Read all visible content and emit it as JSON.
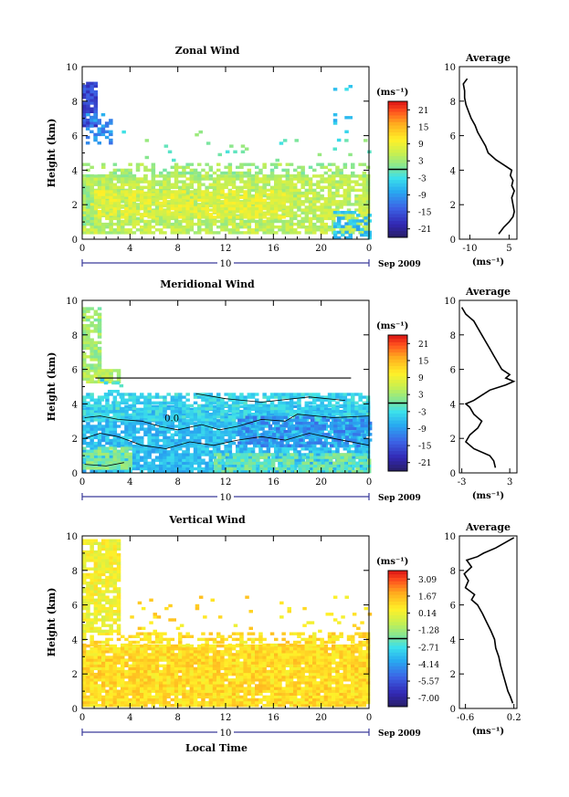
{
  "x_axis": {
    "ticks": [
      "0",
      "4",
      "8",
      "12",
      "16",
      "20",
      "0"
    ],
    "date_day": "10",
    "date_label": "Sep 2009",
    "xlabel": "Local Time"
  },
  "panels": [
    {
      "id": "zonal",
      "title": "Zonal Wind",
      "ylabel": "Height (km)",
      "yticks": [
        "0",
        "2",
        "4",
        "6",
        "8",
        "10"
      ],
      "colorbar": {
        "unit": "(ms⁻¹)",
        "labels": [
          "21",
          "15",
          "9",
          "3",
          "-3",
          "-9",
          "-15",
          "-21"
        ],
        "min": -24,
        "max": 24
      },
      "average": {
        "title": "Average",
        "xticks": [
          "-10",
          "5"
        ],
        "xunit": "(ms⁻¹)",
        "xlim": [
          -14,
          8
        ]
      }
    },
    {
      "id": "meridional",
      "title": "Meridional Wind",
      "ylabel": "Height (km)",
      "yticks": [
        "0",
        "2",
        "4",
        "6",
        "8",
        "10"
      ],
      "contour_label": "0.0",
      "colorbar": {
        "unit": "(ms⁻¹)",
        "labels": [
          "21",
          "15",
          "9",
          "3",
          "-3",
          "-9",
          "-15",
          "-21"
        ],
        "min": -24,
        "max": 24
      },
      "average": {
        "title": "Average",
        "xticks": [
          "-3",
          "3"
        ],
        "xunit": "(ms⁻¹)",
        "xlim": [
          -3.3,
          3.9
        ]
      }
    },
    {
      "id": "vertical",
      "title": "Vertical Wind",
      "ylabel": "Height (km)",
      "yticks": [
        "0",
        "2",
        "4",
        "6",
        "8",
        "10"
      ],
      "colorbar": {
        "unit": "(ms⁻¹)",
        "labels": [
          "3.09",
          "1.67",
          "0.14",
          "-1.28",
          "-2.71",
          "-4.14",
          "-5.57",
          "-7.00"
        ],
        "min": -8,
        "max": 3.8
      },
      "average": {
        "title": "Average",
        "xticks": [
          "-0.6",
          "0.2"
        ],
        "xunit": "(ms⁻¹)",
        "xlim": [
          -0.7,
          0.25
        ]
      }
    }
  ],
  "chart_data": [
    {
      "type": "heatmap",
      "title": "Zonal Wind",
      "ylabel": "Height (km)",
      "xlabel": "",
      "xlim": [
        0,
        24
      ],
      "ylim": [
        0,
        10
      ],
      "colorbar_range": [
        -24,
        24
      ],
      "blobs": [
        {
          "x0": 0,
          "x1": 24,
          "y0": 0.3,
          "y1": 3.6,
          "value": 5,
          "density": 0.82
        },
        {
          "x0": 0,
          "x1": 24,
          "y0": 3.6,
          "y1": 4.4,
          "value": 3,
          "density": 0.45
        },
        {
          "x0": 0,
          "x1": 17,
          "y0": 1.2,
          "y1": 2.8,
          "value": 8,
          "density": 0.75
        },
        {
          "x0": 0,
          "x1": 0.8,
          "y0": 0.8,
          "y1": 3.0,
          "value": 3,
          "density": 0.9
        },
        {
          "x0": 21,
          "x1": 24,
          "y0": 0,
          "y1": 1.5,
          "value": -6,
          "density": 0.5
        },
        {
          "x0": 0,
          "x1": 1.1,
          "y0": 6.5,
          "y1": 9.1,
          "value": -16,
          "density": 0.9
        },
        {
          "x0": 0.3,
          "x1": 2.5,
          "y0": 5.5,
          "y1": 7.3,
          "value": -10,
          "density": 0.5
        },
        {
          "x0": 3,
          "x1": 24,
          "y0": 4.5,
          "y1": 6.2,
          "value": 0,
          "density": 0.03
        },
        {
          "x0": 21,
          "x1": 22.5,
          "y0": 5.5,
          "y1": 9.0,
          "value": -5,
          "density": 0.07
        }
      ],
      "series": [
        {
          "name": "Average",
          "height_km": [
            0.3,
            0.7,
            1.0,
            1.3,
            1.6,
            2.0,
            2.4,
            2.8,
            3.1,
            3.4,
            3.7,
            4.0,
            4.3,
            4.6,
            5.0,
            5.4,
            5.8,
            6.2,
            6.6,
            7.0,
            7.4,
            7.8,
            8.2,
            8.6,
            9.0,
            9.3
          ],
          "value_ms": [
            1,
            3,
            5,
            6.5,
            7,
            6.5,
            6,
            7,
            6,
            6.5,
            5.5,
            6,
            3,
            0,
            -3,
            -4,
            -5.5,
            -7,
            -8,
            -9.5,
            -10.5,
            -11.5,
            -12,
            -12,
            -12.5,
            -11
          ]
        }
      ]
    },
    {
      "type": "heatmap",
      "title": "Meridional Wind",
      "ylabel": "Height (km)",
      "xlabel": "",
      "xlim": [
        0,
        24
      ],
      "ylim": [
        0,
        10
      ],
      "colorbar_range": [
        -24,
        24
      ],
      "blobs": [
        {
          "x0": 0,
          "x1": 24,
          "y0": 0,
          "y1": 3.8,
          "value": -6,
          "density": 0.85
        },
        {
          "x0": 0,
          "x1": 24,
          "y0": 3.0,
          "y1": 4.6,
          "value": -4,
          "density": 0.7
        },
        {
          "x0": 0,
          "x1": 4,
          "y0": 0.2,
          "y1": 1.5,
          "value": 1,
          "density": 0.9
        },
        {
          "x0": 11,
          "x1": 24,
          "y0": 0,
          "y1": 1.0,
          "value": 0,
          "density": 0.75
        },
        {
          "x0": 13,
          "x1": 24,
          "y0": 1.5,
          "y1": 3.2,
          "value": -10,
          "density": 0.6
        },
        {
          "x0": 0,
          "x1": 3,
          "y0": 5.2,
          "y1": 6.0,
          "value": 5,
          "density": 0.9
        },
        {
          "x0": 0,
          "x1": 1.5,
          "y0": 6.0,
          "y1": 9.5,
          "value": 3,
          "density": 0.75
        },
        {
          "x0": 1.5,
          "x1": 3.5,
          "y0": 3.5,
          "y1": 5.5,
          "value": -3,
          "density": 0.2
        }
      ],
      "series": [
        {
          "name": "Average",
          "height_km": [
            0.3,
            0.7,
            1.0,
            1.4,
            1.8,
            2.2,
            2.6,
            3.0,
            3.4,
            3.8,
            4.0,
            4.2,
            4.5,
            4.8,
            5.1,
            5.3,
            5.5,
            5.7,
            6.0,
            6.4,
            6.8,
            7.2,
            7.6,
            8.0,
            8.4,
            8.8,
            9.2,
            9.6
          ],
          "value_ms": [
            1.2,
            1.0,
            0.5,
            -1.5,
            -2.5,
            -2.0,
            -1.0,
            -0.5,
            -1.5,
            -2.0,
            -2.5,
            -1.5,
            -0.5,
            0.5,
            2.5,
            3.5,
            2.5,
            3.0,
            2.0,
            1.5,
            1.0,
            0.5,
            0.0,
            -0.5,
            -1.0,
            -1.5,
            -2.5,
            -3.0
          ]
        }
      ]
    },
    {
      "type": "heatmap",
      "title": "Vertical Wind",
      "ylabel": "Height (km)",
      "xlabel": "Local Time",
      "xlim": [
        0,
        24
      ],
      "ylim": [
        0,
        10
      ],
      "colorbar_range": [
        -8,
        3.8
      ],
      "blobs": [
        {
          "x0": 0,
          "x1": 24,
          "y0": 0.1,
          "y1": 3.6,
          "value": 0.9,
          "density": 0.95
        },
        {
          "x0": 0,
          "x1": 24,
          "y0": 3.6,
          "y1": 4.4,
          "value": 0.8,
          "density": 0.45
        },
        {
          "x0": 0,
          "x1": 3.2,
          "y0": 4.4,
          "y1": 9.8,
          "value": 0.2,
          "density": 0.8
        },
        {
          "x0": 4,
          "x1": 24,
          "y0": 4.4,
          "y1": 6.5,
          "value": 0.8,
          "density": 0.05
        }
      ],
      "series": [
        {
          "name": "Average",
          "height_km": [
            0.3,
            0.7,
            1.0,
            1.5,
            2.0,
            2.5,
            3.0,
            3.5,
            4.0,
            4.5,
            5.0,
            5.5,
            6.0,
            6.3,
            6.6,
            7.0,
            7.4,
            7.8,
            8.2,
            8.6,
            8.8,
            9.0,
            9.3,
            9.6,
            9.9
          ],
          "value_ms": [
            0.18,
            0.14,
            0.1,
            0.06,
            0.02,
            -0.02,
            -0.05,
            -0.1,
            -0.12,
            -0.18,
            -0.25,
            -0.32,
            -0.4,
            -0.5,
            -0.45,
            -0.6,
            -0.55,
            -0.62,
            -0.5,
            -0.58,
            -0.4,
            -0.3,
            -0.1,
            0.05,
            0.2
          ]
        }
      ]
    }
  ]
}
